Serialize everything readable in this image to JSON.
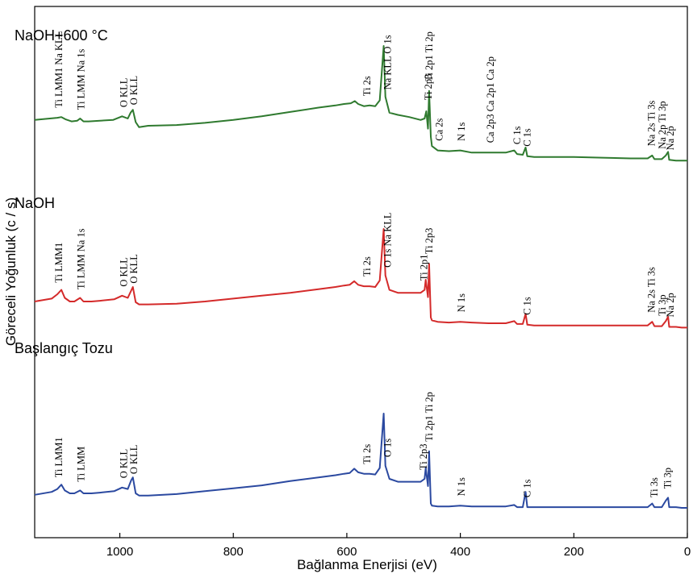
{
  "chart_data": {
    "type": "line",
    "title": "",
    "xlabel": "Bağlanma Enerjisi (eV)",
    "ylabel": "Göreceli Yoğunluk (c / s)",
    "xlim": [
      1150,
      0
    ],
    "x_reversed": true,
    "x_ticks": [
      1000,
      800,
      600,
      400,
      200,
      0
    ],
    "y_ticks_shown": false,
    "grid": false,
    "series": [
      {
        "name": "NaOH+600 °C",
        "color": "#2f7a2f",
        "points": [
          [
            1150,
            68
          ],
          [
            1110,
            71
          ],
          [
            1103,
            72
          ],
          [
            1096,
            69
          ],
          [
            1085,
            66
          ],
          [
            1075,
            67
          ],
          [
            1070,
            70
          ],
          [
            1064,
            66
          ],
          [
            1055,
            66
          ],
          [
            1035,
            67
          ],
          [
            1012,
            68
          ],
          [
            996,
            73
          ],
          [
            986,
            70
          ],
          [
            981,
            78
          ],
          [
            977,
            82
          ],
          [
            972,
            65
          ],
          [
            966,
            58
          ],
          [
            950,
            60
          ],
          [
            900,
            61
          ],
          [
            850,
            64
          ],
          [
            800,
            68
          ],
          [
            750,
            73
          ],
          [
            700,
            79
          ],
          [
            650,
            85
          ],
          [
            620,
            88
          ],
          [
            605,
            90
          ],
          [
            593,
            91
          ],
          [
            586,
            94
          ],
          [
            580,
            90
          ],
          [
            570,
            87
          ],
          [
            560,
            88
          ],
          [
            550,
            87
          ],
          [
            542,
            95
          ],
          [
            535,
            170
          ],
          [
            532,
            100
          ],
          [
            525,
            78
          ],
          [
            510,
            75
          ],
          [
            490,
            72
          ],
          [
            470,
            68
          ],
          [
            463,
            70
          ],
          [
            460,
            80
          ],
          [
            457,
            56
          ],
          [
            455,
            108
          ],
          [
            452,
            45
          ],
          [
            450,
            32
          ],
          [
            440,
            26
          ],
          [
            420,
            25
          ],
          [
            400,
            26
          ],
          [
            380,
            23
          ],
          [
            350,
            23
          ],
          [
            320,
            23
          ],
          [
            305,
            26
          ],
          [
            300,
            21
          ],
          [
            290,
            20
          ],
          [
            285,
            30
          ],
          [
            282,
            18
          ],
          [
            270,
            17
          ],
          [
            250,
            17
          ],
          [
            200,
            17
          ],
          [
            150,
            16
          ],
          [
            100,
            15
          ],
          [
            70,
            15
          ],
          [
            62,
            19
          ],
          [
            58,
            14
          ],
          [
            45,
            14
          ],
          [
            38,
            19
          ],
          [
            34,
            24
          ],
          [
            32,
            13
          ],
          [
            20,
            12
          ],
          [
            10,
            12
          ],
          [
            0,
            12
          ]
        ]
      },
      {
        "name": "NaOH",
        "color": "#d42a2a",
        "points": [
          [
            1150,
            40
          ],
          [
            1120,
            44
          ],
          [
            1110,
            50
          ],
          [
            1103,
            56
          ],
          [
            1097,
            45
          ],
          [
            1088,
            40
          ],
          [
            1080,
            40
          ],
          [
            1070,
            45
          ],
          [
            1064,
            40
          ],
          [
            1050,
            40
          ],
          [
            1035,
            41
          ],
          [
            1010,
            43
          ],
          [
            996,
            48
          ],
          [
            986,
            45
          ],
          [
            980,
            55
          ],
          [
            977,
            60
          ],
          [
            972,
            39
          ],
          [
            966,
            36
          ],
          [
            950,
            36
          ],
          [
            900,
            37
          ],
          [
            850,
            40
          ],
          [
            800,
            44
          ],
          [
            750,
            48
          ],
          [
            700,
            52
          ],
          [
            650,
            57
          ],
          [
            620,
            60
          ],
          [
            605,
            62
          ],
          [
            595,
            63
          ],
          [
            587,
            68
          ],
          [
            580,
            63
          ],
          [
            570,
            61
          ],
          [
            560,
            61
          ],
          [
            550,
            60
          ],
          [
            542,
            69
          ],
          [
            535,
            140
          ],
          [
            532,
            76
          ],
          [
            525,
            56
          ],
          [
            510,
            52
          ],
          [
            490,
            52
          ],
          [
            470,
            52
          ],
          [
            463,
            56
          ],
          [
            461,
            70
          ],
          [
            457,
            46
          ],
          [
            455,
            92
          ],
          [
            452,
            18
          ],
          [
            450,
            14
          ],
          [
            440,
            12
          ],
          [
            420,
            11
          ],
          [
            400,
            12
          ],
          [
            380,
            11
          ],
          [
            350,
            10
          ],
          [
            320,
            10
          ],
          [
            305,
            13
          ],
          [
            300,
            9
          ],
          [
            290,
            9
          ],
          [
            285,
            23
          ],
          [
            282,
            8
          ],
          [
            270,
            7
          ],
          [
            250,
            7
          ],
          [
            200,
            7
          ],
          [
            150,
            7
          ],
          [
            100,
            7
          ],
          [
            70,
            7
          ],
          [
            62,
            12
          ],
          [
            58,
            6
          ],
          [
            45,
            6
          ],
          [
            38,
            13
          ],
          [
            34,
            19
          ],
          [
            32,
            5
          ],
          [
            20,
            5
          ],
          [
            10,
            4
          ],
          [
            0,
            4
          ]
        ]
      },
      {
        "name": "Başlangıç Tozu",
        "color": "#2b49a0",
        "points": [
          [
            1150,
            18
          ],
          [
            1120,
            22
          ],
          [
            1110,
            26
          ],
          [
            1103,
            32
          ],
          [
            1097,
            24
          ],
          [
            1088,
            20
          ],
          [
            1080,
            20
          ],
          [
            1070,
            24
          ],
          [
            1064,
            20
          ],
          [
            1050,
            20
          ],
          [
            1035,
            21
          ],
          [
            1010,
            23
          ],
          [
            996,
            28
          ],
          [
            986,
            26
          ],
          [
            980,
            38
          ],
          [
            977,
            42
          ],
          [
            972,
            20
          ],
          [
            966,
            17
          ],
          [
            950,
            17
          ],
          [
            900,
            19
          ],
          [
            850,
            23
          ],
          [
            800,
            27
          ],
          [
            750,
            31
          ],
          [
            700,
            37
          ],
          [
            650,
            42
          ],
          [
            620,
            45
          ],
          [
            605,
            47
          ],
          [
            595,
            48
          ],
          [
            587,
            54
          ],
          [
            580,
            49
          ],
          [
            570,
            47
          ],
          [
            560,
            47
          ],
          [
            550,
            46
          ],
          [
            542,
            55
          ],
          [
            535,
            130
          ],
          [
            532,
            58
          ],
          [
            525,
            40
          ],
          [
            510,
            36
          ],
          [
            490,
            36
          ],
          [
            470,
            36
          ],
          [
            463,
            40
          ],
          [
            461,
            55
          ],
          [
            457,
            30
          ],
          [
            455,
            78
          ],
          [
            452,
            6
          ],
          [
            450,
            3
          ],
          [
            440,
            2
          ],
          [
            420,
            2
          ],
          [
            400,
            3
          ],
          [
            380,
            2
          ],
          [
            350,
            2
          ],
          [
            320,
            2
          ],
          [
            305,
            4
          ],
          [
            300,
            1
          ],
          [
            290,
            1
          ],
          [
            285,
            22
          ],
          [
            282,
            1
          ],
          [
            270,
            1
          ],
          [
            250,
            1
          ],
          [
            200,
            1
          ],
          [
            150,
            1
          ],
          [
            100,
            1
          ],
          [
            70,
            1
          ],
          [
            62,
            6
          ],
          [
            58,
            1
          ],
          [
            45,
            1
          ],
          [
            38,
            10
          ],
          [
            34,
            14
          ],
          [
            32,
            1
          ],
          [
            20,
            1
          ],
          [
            10,
            0
          ],
          [
            0,
            0
          ]
        ]
      }
    ],
    "annotations": [
      {
        "text": "NaOH+600 °C",
        "kind": "series-name",
        "series": 0
      },
      {
        "text": "NaOH",
        "kind": "series-name",
        "series": 1
      },
      {
        "text": "Başlangıç Tozu",
        "kind": "series-name",
        "series": 2
      },
      {
        "text": "Ti LMM1 Na KLL",
        "series": 0,
        "x": 1107
      },
      {
        "text": "Ti LMM Na 1s",
        "series": 0,
        "x": 1068
      },
      {
        "text": "O KLL",
        "series": 0,
        "x": 993
      },
      {
        "text": "O KLL",
        "series": 0,
        "x": 975
      },
      {
        "text": "Ti 2s",
        "series": 0,
        "x": 564
      },
      {
        "text": "Na KLL O 1s",
        "series": 0,
        "x": 528
      },
      {
        "text": "Ti 2p1 Ti 2p",
        "series": 0,
        "x": 455
      },
      {
        "text": "Ti 2p3",
        "series": 0,
        "x": 456
      },
      {
        "text": "Ca 2s",
        "series": 0,
        "x": 437
      },
      {
        "text": "N 1s",
        "series": 0,
        "x": 398
      },
      {
        "text": "Ca 2p3 Ca 2p1 Ca 2p",
        "series": 0,
        "x": 347
      },
      {
        "text": "C 1s",
        "series": 0,
        "x": 300
      },
      {
        "text": "C 1s",
        "series": 0,
        "x": 282
      },
      {
        "text": "Na 2s Ti 3s",
        "series": 0,
        "x": 63
      },
      {
        "text": "Na 2p Ti 3p",
        "series": 0,
        "x": 44
      },
      {
        "text": "Na 2p",
        "series": 0,
        "x": 30
      },
      {
        "text": "Ti LMM1",
        "series": 1,
        "x": 1107
      },
      {
        "text": "Ti LMM Na 1s",
        "series": 1,
        "x": 1068
      },
      {
        "text": "O KLL",
        "series": 1,
        "x": 993
      },
      {
        "text": "O KLL",
        "series": 1,
        "x": 975
      },
      {
        "text": "Ti 2s",
        "series": 1,
        "x": 564
      },
      {
        "text": "O 1s Na KLL",
        "series": 1,
        "x": 528
      },
      {
        "text": "Ti 2p1",
        "series": 1,
        "x": 464
      },
      {
        "text": "Ti 2p3",
        "series": 1,
        "x": 455
      },
      {
        "text": "N 1s",
        "series": 1,
        "x": 398
      },
      {
        "text": "C 1s",
        "series": 1,
        "x": 282
      },
      {
        "text": "Na 2s Ti 3s",
        "series": 1,
        "x": 63
      },
      {
        "text": "Ti 3p",
        "series": 1,
        "x": 44
      },
      {
        "text": "Na 2p",
        "series": 1,
        "x": 30
      },
      {
        "text": "Ti LMM1",
        "series": 2,
        "x": 1107
      },
      {
        "text": "Ti LMM",
        "series": 2,
        "x": 1068
      },
      {
        "text": "O KLL",
        "series": 2,
        "x": 993
      },
      {
        "text": "O KLL",
        "series": 2,
        "x": 975
      },
      {
        "text": "Ti 2s",
        "series": 2,
        "x": 564
      },
      {
        "text": "O 1s",
        "series": 2,
        "x": 528
      },
      {
        "text": "Ti 2p1 Ti 2p",
        "series": 2,
        "x": 455
      },
      {
        "text": "Ti 2p3",
        "series": 2,
        "x": 465
      },
      {
        "text": "N 1s",
        "series": 2,
        "x": 398
      },
      {
        "text": "C 1s",
        "series": 2,
        "x": 282
      },
      {
        "text": "Ti 3s",
        "series": 2,
        "x": 58
      },
      {
        "text": "Ti 3p",
        "series": 2,
        "x": 35
      }
    ]
  }
}
